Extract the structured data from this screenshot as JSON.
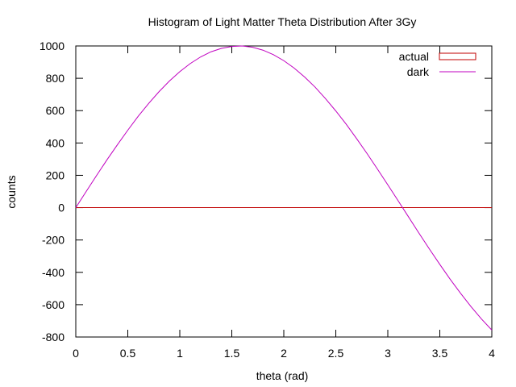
{
  "chart_data": {
    "type": "line",
    "title": "Histogram of Light Matter Theta Distribution After 3Gy",
    "xlabel": "theta (rad)",
    "ylabel": "counts",
    "xlim": [
      0,
      4
    ],
    "ylim": [
      -800,
      1000
    ],
    "x_ticks": [
      {
        "value": 0,
        "label": "0"
      },
      {
        "value": 0.5,
        "label": "0.5"
      },
      {
        "value": 1,
        "label": "1"
      },
      {
        "value": 1.5,
        "label": "1.5"
      },
      {
        "value": 2,
        "label": "2"
      },
      {
        "value": 2.5,
        "label": "2.5"
      },
      {
        "value": 3,
        "label": "3"
      },
      {
        "value": 3.5,
        "label": "3.5"
      },
      {
        "value": 4,
        "label": "4"
      }
    ],
    "y_ticks": [
      {
        "value": 1000,
        "label": "1000"
      },
      {
        "value": 800,
        "label": "800"
      },
      {
        "value": 600,
        "label": "600"
      },
      {
        "value": 400,
        "label": "400"
      },
      {
        "value": 200,
        "label": "200"
      },
      {
        "value": 0,
        "label": "0"
      },
      {
        "value": -200,
        "label": "-200"
      },
      {
        "value": -400,
        "label": "-400"
      },
      {
        "value": -600,
        "label": "-600"
      },
      {
        "value": -800,
        "label": "-800"
      }
    ],
    "grid": false,
    "legend_position": "top-right",
    "series": [
      {
        "name": "actual",
        "style": "boxes",
        "color": "#c00000",
        "x": [
          0,
          4
        ],
        "y": [
          0,
          0
        ]
      },
      {
        "name": "dark",
        "style": "line",
        "color": "#c000c0",
        "x": [
          0,
          0.1,
          0.2,
          0.3,
          0.4,
          0.5,
          0.6,
          0.7,
          0.8,
          0.9,
          1.0,
          1.1,
          1.2,
          1.3,
          1.4,
          1.5,
          1.6,
          1.7,
          1.8,
          1.9,
          2.0,
          2.1,
          2.2,
          2.3,
          2.4,
          2.5,
          2.6,
          2.7,
          2.8,
          2.9,
          3.0,
          3.1,
          3.2,
          3.3,
          3.4,
          3.5,
          3.6,
          3.7,
          3.8,
          3.9,
          4.0
        ],
        "y": [
          0,
          100,
          199,
          296,
          389,
          479,
          565,
          644,
          717,
          783,
          841,
          891,
          932,
          964,
          985,
          997,
          1000,
          992,
          974,
          946,
          909,
          863,
          808,
          746,
          675,
          598,
          516,
          427,
          335,
          239,
          141,
          42,
          -58,
          -158,
          -256,
          -351,
          -443,
          -530,
          -612,
          -688,
          -757
        ]
      }
    ]
  }
}
